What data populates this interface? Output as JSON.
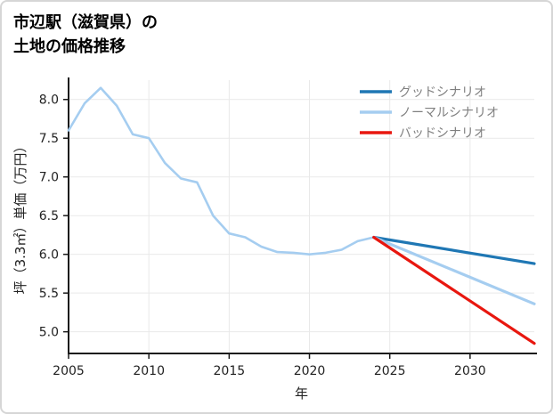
{
  "page": {
    "title_line1": "市辺駅（滋賀県）の",
    "title_line2": "土地の価格推移"
  },
  "chart_data": {
    "type": "line",
    "title": "市辺駅（滋賀県）の土地の価格推移",
    "xlabel": "年",
    "ylabel": "坪（3.3㎡）単価（万円）",
    "xlim": [
      2005,
      2034
    ],
    "ylim": [
      4.72,
      8.25
    ],
    "xticks": [
      2005,
      2010,
      2015,
      2020,
      2025,
      2030
    ],
    "yticks": [
      5.0,
      5.5,
      6.0,
      6.5,
      7.0,
      7.5,
      8.0
    ],
    "grid": true,
    "legend_position": "upper right",
    "series": [
      {
        "key": "history",
        "name": "",
        "in_legend": false,
        "color": "#a5cdf0",
        "width": 2.6,
        "x": [
          2005,
          2006,
          2007,
          2008,
          2009,
          2010,
          2011,
          2012,
          2013,
          2014,
          2015,
          2016,
          2017,
          2018,
          2019,
          2020,
          2021,
          2022,
          2023,
          2024
        ],
        "y": [
          7.6,
          7.95,
          8.15,
          7.92,
          7.55,
          7.5,
          7.18,
          6.98,
          6.93,
          6.5,
          6.27,
          6.22,
          6.1,
          6.03,
          6.02,
          6.0,
          6.02,
          6.06,
          6.17,
          6.22
        ]
      },
      {
        "key": "good",
        "name": "グッドシナリオ",
        "in_legend": true,
        "color": "#1f77b4",
        "width": 3.2,
        "x": [
          2024,
          2034
        ],
        "y": [
          6.22,
          5.88
        ]
      },
      {
        "key": "normal",
        "name": "ノーマルシナリオ",
        "in_legend": true,
        "color": "#a5cdf0",
        "width": 3.2,
        "x": [
          2024,
          2034
        ],
        "y": [
          6.22,
          5.36
        ]
      },
      {
        "key": "bad",
        "name": "バッドシナリオ",
        "in_legend": true,
        "color": "#e8170f",
        "width": 3.2,
        "x": [
          2024,
          2034
        ],
        "y": [
          6.22,
          4.85
        ]
      }
    ]
  }
}
